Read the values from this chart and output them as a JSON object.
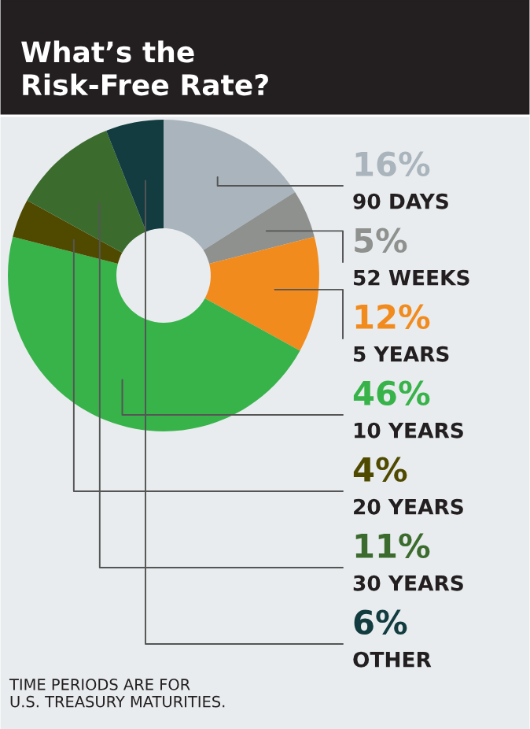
{
  "chart_data": {
    "type": "donut",
    "title": "What’s the\nRisk-Free Rate?",
    "categories": [
      "90 DAYS",
      "52 WEEKS",
      "5 YEARS",
      "10 YEARS",
      "20 YEARS",
      "30 YEARS",
      "OTHER"
    ],
    "values": [
      16,
      5,
      12,
      46,
      4,
      11,
      6
    ],
    "colors": [
      "#aab4bc",
      "#8f918e",
      "#f28b1e",
      "#37b34a",
      "#4f4a00",
      "#3c6b2e",
      "#123c40"
    ],
    "value_labels": [
      "16%",
      "5%",
      "12%",
      "46%",
      "4%",
      "11%",
      "6%"
    ],
    "annotations": [
      "TIME PERIODS ARE FOR\nU.S. TREASURY MATURITIES."
    ]
  }
}
